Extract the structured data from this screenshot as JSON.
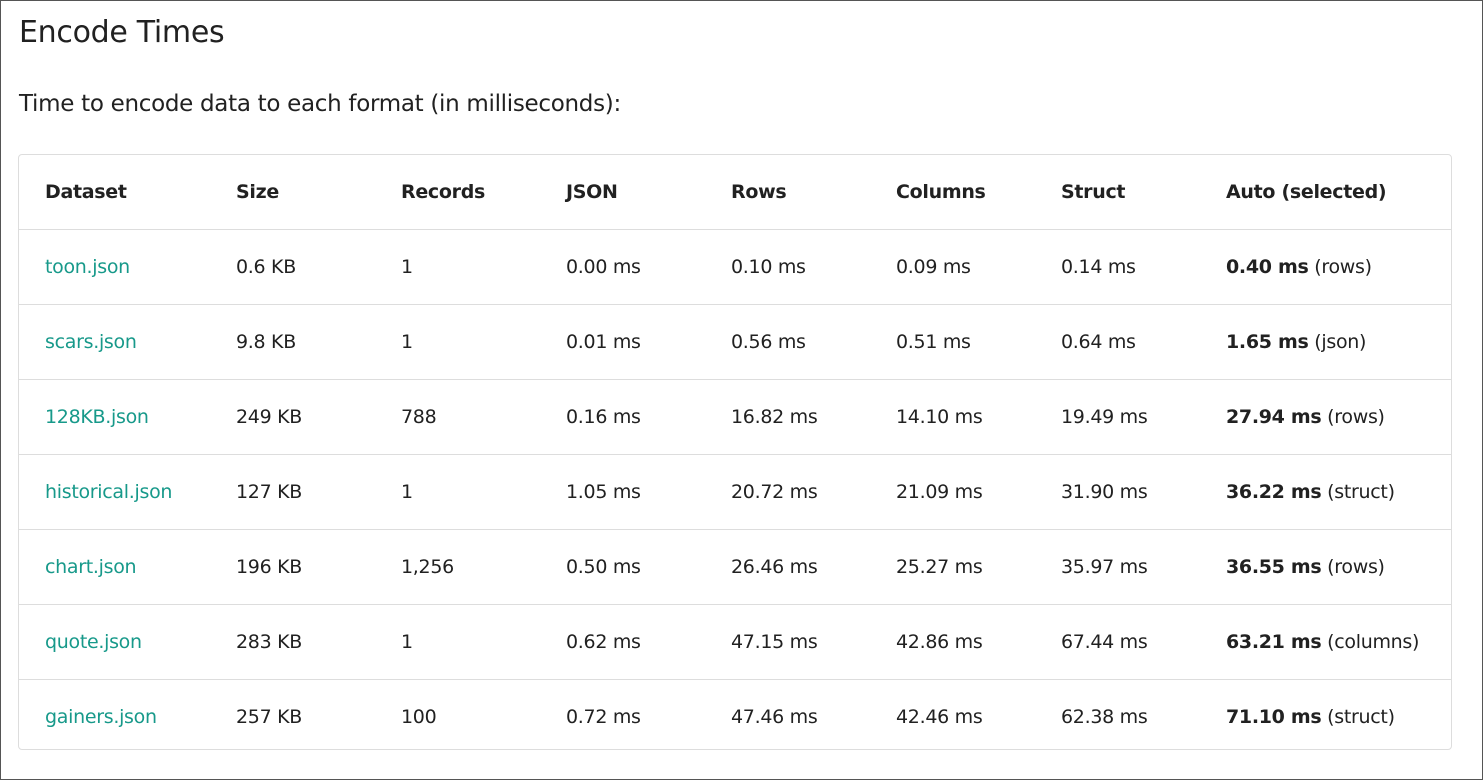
{
  "title": "Encode Times",
  "subtitle": "Time to encode data to each format (in milliseconds):",
  "colors": {
    "link": "#17998a"
  },
  "table": {
    "headers": [
      "Dataset",
      "Size",
      "Records",
      "JSON",
      "Rows",
      "Columns",
      "Struct",
      "Auto (selected)"
    ],
    "rows": [
      {
        "dataset": "toon.json",
        "size": "0.6 KB",
        "records": "1",
        "json": "0.00 ms",
        "rows": "0.10 ms",
        "columns": "0.09 ms",
        "struct": "0.14 ms",
        "auto": "0.40 ms",
        "auto_format": "(rows)"
      },
      {
        "dataset": "scars.json",
        "size": "9.8 KB",
        "records": "1",
        "json": "0.01 ms",
        "rows": "0.56 ms",
        "columns": "0.51 ms",
        "struct": "0.64 ms",
        "auto": "1.65 ms",
        "auto_format": "(json)"
      },
      {
        "dataset": "128KB.json",
        "size": "249 KB",
        "records": "788",
        "json": "0.16 ms",
        "rows": "16.82 ms",
        "columns": "14.10 ms",
        "struct": "19.49 ms",
        "auto": "27.94 ms",
        "auto_format": "(rows)"
      },
      {
        "dataset": "historical.json",
        "size": "127 KB",
        "records": "1",
        "json": "1.05 ms",
        "rows": "20.72 ms",
        "columns": "21.09 ms",
        "struct": "31.90 ms",
        "auto": "36.22 ms",
        "auto_format": "(struct)"
      },
      {
        "dataset": "chart.json",
        "size": "196 KB",
        "records": "1,256",
        "json": "0.50 ms",
        "rows": "26.46 ms",
        "columns": "25.27 ms",
        "struct": "35.97 ms",
        "auto": "36.55 ms",
        "auto_format": "(rows)"
      },
      {
        "dataset": "quote.json",
        "size": "283 KB",
        "records": "1",
        "json": "0.62 ms",
        "rows": "47.15 ms",
        "columns": "42.86 ms",
        "struct": "67.44 ms",
        "auto": "63.21 ms",
        "auto_format": "(columns)"
      },
      {
        "dataset": "gainers.json",
        "size": "257 KB",
        "records": "100",
        "json": "0.72 ms",
        "rows": "47.46 ms",
        "columns": "42.46 ms",
        "struct": "62.38 ms",
        "auto": "71.10 ms",
        "auto_format": "(struct)"
      }
    ]
  }
}
